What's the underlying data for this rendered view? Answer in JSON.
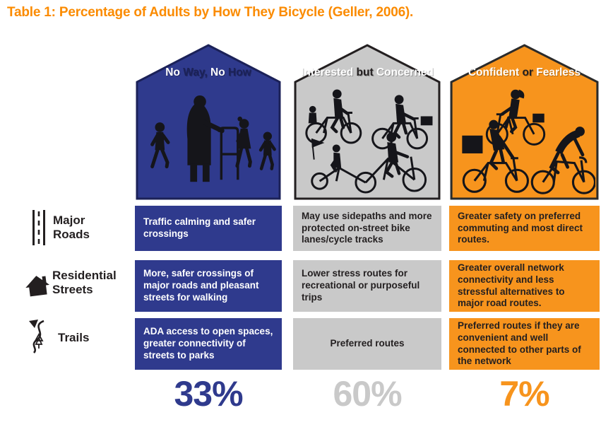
{
  "title": "Table 1: Percentage of Adults by How They Bicycle (Geller, 2006).",
  "title_color": "#FB8B00",
  "rows": [
    {
      "label": "Major Roads",
      "icon": "road-icon"
    },
    {
      "label": "Residential Streets",
      "icon": "house-icon"
    },
    {
      "label": "Trails",
      "icon": "trail-icon"
    }
  ],
  "columns": [
    {
      "name": "No Way, No How",
      "header_segments": [
        {
          "text": "No",
          "color": "#FFFFFF"
        },
        {
          "text": "Way,",
          "color": "#1B2158"
        },
        {
          "text": "No",
          "color": "#FFFFFF"
        },
        {
          "text": "How",
          "color": "#1B2158"
        }
      ],
      "fill": "#2F3A8D",
      "outline": "#1B2158",
      "text_color": "#FFFFFF",
      "illustration": "pedestrians-with-walker-and-children",
      "cells": [
        "Traffic calming and safer crossings",
        "More, safer crossings of major roads and pleasant streets for walking",
        "ADA access to open spaces, greater connectivity of streets to parks"
      ],
      "percent": "33%",
      "percent_color": "#2F3A8D"
    },
    {
      "name": "Interested but Concerned",
      "header_segments": [
        {
          "text": "Interested",
          "color": "#FFFFFF"
        },
        {
          "text": "but",
          "color": "#231F20"
        },
        {
          "text": "Concerned",
          "color": "#FFFFFF"
        }
      ],
      "fill": "#C9C9C9",
      "outline": "#231F20",
      "text_color": "#231F20",
      "illustration": "casual-family-cyclists",
      "cells": [
        "May use sidepaths and more protected on-street bike lanes/cycle tracks",
        "Lower stress routes for recreational or purposeful trips",
        "Preferred routes"
      ],
      "percent": "60%",
      "percent_color": "#C9C9C9"
    },
    {
      "name": "Confident or Fearless",
      "header_segments": [
        {
          "text": "Confident",
          "color": "#FFFFFF"
        },
        {
          "text": "or",
          "color": "#231F20"
        },
        {
          "text": "Fearless",
          "color": "#FFFFFF"
        }
      ],
      "fill": "#F7941D",
      "outline": "#2B2B2B",
      "text_color": "#231F20",
      "illustration": "commuter-courier-and-road-cyclists",
      "cells": [
        "Greater safety on preferred commuting and most direct routes.",
        "Greater overall network connectivity and less stressful alternatives to major road routes.",
        "Preferred routes if they are convenient and well connected to other parts of the network"
      ],
      "percent": "7%",
      "percent_color": "#F7941D"
    }
  ],
  "chart_data": {
    "type": "table",
    "title": "Table 1: Percentage of Adults by How They Bicycle (Geller, 2006).",
    "categories": [
      "No Way, No How",
      "Interested but Concerned",
      "Confident or Fearless"
    ],
    "percent_of_adults": [
      33,
      60,
      7
    ],
    "row_labels": [
      "Major Roads",
      "Residential Streets",
      "Trails"
    ],
    "cells": [
      [
        "Traffic calming and safer crossings",
        "May use sidepaths and more protected on-street bike lanes/cycle tracks",
        "Greater safety on preferred commuting and most direct routes."
      ],
      [
        "More, safer crossings of major roads and pleasant streets for walking",
        "Lower stress routes for recreational or purposeful trips",
        "Greater overall network connectivity and less stressful alternatives to major road routes."
      ],
      [
        "ADA access to open spaces, greater connectivity of streets to parks",
        "Preferred routes",
        "Preferred routes if they are convenient and well connected to other parts of the network"
      ]
    ]
  }
}
